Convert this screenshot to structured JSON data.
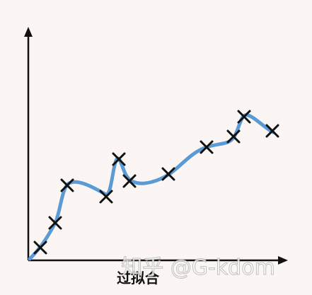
{
  "label": "过拟合",
  "watermark": "知乎 @G-kdom"
}
